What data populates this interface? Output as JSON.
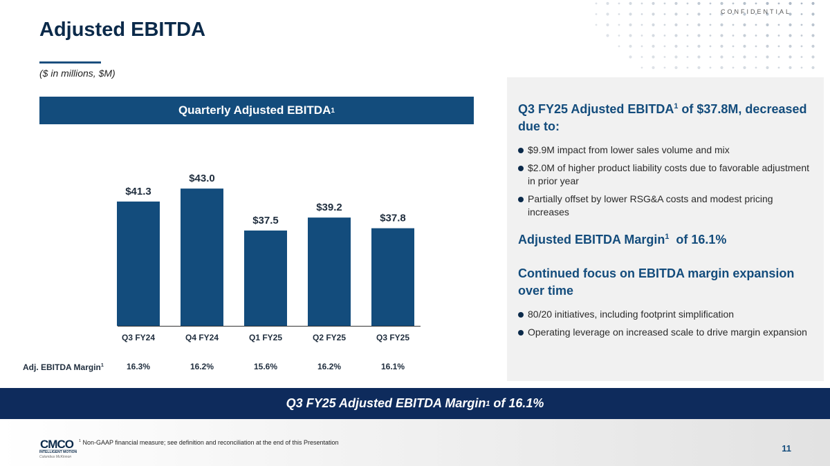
{
  "header": {
    "confidential": "CONFIDENTIAL",
    "title": "Adjusted EBITDA",
    "subtitle": "($ in millions, $M)"
  },
  "chart_header": {
    "text": "Quarterly Adjusted EBITDA",
    "sup": "1"
  },
  "chart_data": {
    "type": "bar",
    "title": "Quarterly Adjusted EBITDA",
    "categories": [
      "Q3 FY24",
      "Q4 FY24",
      "Q1 FY25",
      "Q2 FY25",
      "Q3 FY25"
    ],
    "values": [
      41.3,
      43.0,
      37.5,
      39.2,
      37.8
    ],
    "value_labels": [
      "$41.3",
      "$43.0",
      "$37.5",
      "$39.2",
      "$37.8"
    ],
    "units": "$M",
    "ylim": [
      25,
      46
    ],
    "grid": false,
    "bar_color": "#134c7c",
    "margin_row": {
      "label": "Adj. EBITDA Margin",
      "label_sup": "1",
      "values": [
        "16.3%",
        "16.2%",
        "15.6%",
        "16.2%",
        "16.1%"
      ]
    }
  },
  "panel": {
    "heading1_pre": "Q3 FY25 Adjusted EBITDA",
    "heading1_sup": "1",
    "heading1_post": " of $37.8M, decreased due to:",
    "bullets1": [
      "$9.9M impact from lower sales volume and mix",
      "$2.0M of higher product liability costs due to favorable adjustment in prior year",
      "Partially offset by lower RSG&A costs and modest pricing increases"
    ],
    "heading2_pre": "Adjusted EBITDA Margin",
    "heading2_sup": "1",
    "heading2_post": "  of 16.1%",
    "heading3": "Continued focus on EBITDA margin expansion over time",
    "bullets2": [
      "80/20 initiatives, including footprint simplification",
      "Operating leverage on increased scale to drive margin expansion"
    ]
  },
  "banner": {
    "pre": "Q3 FY25 Adjusted EBITDA Margin",
    "sup": "1",
    "post": " of 16.1%"
  },
  "footer": {
    "logo_text": "CMCO",
    "logo_tagline": "INTELLIGENT MOTION",
    "logo_sub": "Columbus McKinnon",
    "footnote_sup": "1",
    "footnote": " Non-GAAP financial measure; see definition and reconciliation at the end of this Presentation",
    "page_number": "11"
  },
  "colors": {
    "navy": "#0e2b5c",
    "brand_blue": "#134c7c",
    "panel_bg": "#f1f1f1"
  }
}
